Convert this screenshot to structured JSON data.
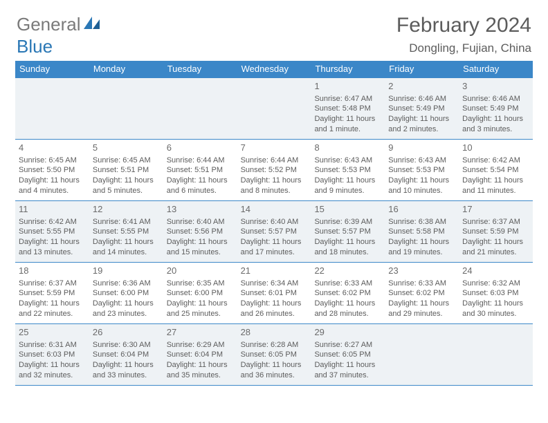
{
  "logo": {
    "part1": "General",
    "part2": "Blue"
  },
  "title": "February 2024",
  "location": "Dongling, Fujian, China",
  "colors": {
    "header_bg": "#3b87c8",
    "shade_bg": "#eef2f5",
    "text": "#5c5c5c",
    "logo_gray": "#7a7a7a",
    "logo_blue": "#2a77b5"
  },
  "day_names": [
    "Sunday",
    "Monday",
    "Tuesday",
    "Wednesday",
    "Thursday",
    "Friday",
    "Saturday"
  ],
  "weeks": [
    [
      {
        "num": "",
        "sunrise": "",
        "sunset": "",
        "daylight": ""
      },
      {
        "num": "",
        "sunrise": "",
        "sunset": "",
        "daylight": ""
      },
      {
        "num": "",
        "sunrise": "",
        "sunset": "",
        "daylight": ""
      },
      {
        "num": "",
        "sunrise": "",
        "sunset": "",
        "daylight": ""
      },
      {
        "num": "1",
        "sunrise": "Sunrise: 6:47 AM",
        "sunset": "Sunset: 5:48 PM",
        "daylight": "Daylight: 11 hours and 1 minute."
      },
      {
        "num": "2",
        "sunrise": "Sunrise: 6:46 AM",
        "sunset": "Sunset: 5:49 PM",
        "daylight": "Daylight: 11 hours and 2 minutes."
      },
      {
        "num": "3",
        "sunrise": "Sunrise: 6:46 AM",
        "sunset": "Sunset: 5:49 PM",
        "daylight": "Daylight: 11 hours and 3 minutes."
      }
    ],
    [
      {
        "num": "4",
        "sunrise": "Sunrise: 6:45 AM",
        "sunset": "Sunset: 5:50 PM",
        "daylight": "Daylight: 11 hours and 4 minutes."
      },
      {
        "num": "5",
        "sunrise": "Sunrise: 6:45 AM",
        "sunset": "Sunset: 5:51 PM",
        "daylight": "Daylight: 11 hours and 5 minutes."
      },
      {
        "num": "6",
        "sunrise": "Sunrise: 6:44 AM",
        "sunset": "Sunset: 5:51 PM",
        "daylight": "Daylight: 11 hours and 6 minutes."
      },
      {
        "num": "7",
        "sunrise": "Sunrise: 6:44 AM",
        "sunset": "Sunset: 5:52 PM",
        "daylight": "Daylight: 11 hours and 8 minutes."
      },
      {
        "num": "8",
        "sunrise": "Sunrise: 6:43 AM",
        "sunset": "Sunset: 5:53 PM",
        "daylight": "Daylight: 11 hours and 9 minutes."
      },
      {
        "num": "9",
        "sunrise": "Sunrise: 6:43 AM",
        "sunset": "Sunset: 5:53 PM",
        "daylight": "Daylight: 11 hours and 10 minutes."
      },
      {
        "num": "10",
        "sunrise": "Sunrise: 6:42 AM",
        "sunset": "Sunset: 5:54 PM",
        "daylight": "Daylight: 11 hours and 11 minutes."
      }
    ],
    [
      {
        "num": "11",
        "sunrise": "Sunrise: 6:42 AM",
        "sunset": "Sunset: 5:55 PM",
        "daylight": "Daylight: 11 hours and 13 minutes."
      },
      {
        "num": "12",
        "sunrise": "Sunrise: 6:41 AM",
        "sunset": "Sunset: 5:55 PM",
        "daylight": "Daylight: 11 hours and 14 minutes."
      },
      {
        "num": "13",
        "sunrise": "Sunrise: 6:40 AM",
        "sunset": "Sunset: 5:56 PM",
        "daylight": "Daylight: 11 hours and 15 minutes."
      },
      {
        "num": "14",
        "sunrise": "Sunrise: 6:40 AM",
        "sunset": "Sunset: 5:57 PM",
        "daylight": "Daylight: 11 hours and 17 minutes."
      },
      {
        "num": "15",
        "sunrise": "Sunrise: 6:39 AM",
        "sunset": "Sunset: 5:57 PM",
        "daylight": "Daylight: 11 hours and 18 minutes."
      },
      {
        "num": "16",
        "sunrise": "Sunrise: 6:38 AM",
        "sunset": "Sunset: 5:58 PM",
        "daylight": "Daylight: 11 hours and 19 minutes."
      },
      {
        "num": "17",
        "sunrise": "Sunrise: 6:37 AM",
        "sunset": "Sunset: 5:59 PM",
        "daylight": "Daylight: 11 hours and 21 minutes."
      }
    ],
    [
      {
        "num": "18",
        "sunrise": "Sunrise: 6:37 AM",
        "sunset": "Sunset: 5:59 PM",
        "daylight": "Daylight: 11 hours and 22 minutes."
      },
      {
        "num": "19",
        "sunrise": "Sunrise: 6:36 AM",
        "sunset": "Sunset: 6:00 PM",
        "daylight": "Daylight: 11 hours and 23 minutes."
      },
      {
        "num": "20",
        "sunrise": "Sunrise: 6:35 AM",
        "sunset": "Sunset: 6:00 PM",
        "daylight": "Daylight: 11 hours and 25 minutes."
      },
      {
        "num": "21",
        "sunrise": "Sunrise: 6:34 AM",
        "sunset": "Sunset: 6:01 PM",
        "daylight": "Daylight: 11 hours and 26 minutes."
      },
      {
        "num": "22",
        "sunrise": "Sunrise: 6:33 AM",
        "sunset": "Sunset: 6:02 PM",
        "daylight": "Daylight: 11 hours and 28 minutes."
      },
      {
        "num": "23",
        "sunrise": "Sunrise: 6:33 AM",
        "sunset": "Sunset: 6:02 PM",
        "daylight": "Daylight: 11 hours and 29 minutes."
      },
      {
        "num": "24",
        "sunrise": "Sunrise: 6:32 AM",
        "sunset": "Sunset: 6:03 PM",
        "daylight": "Daylight: 11 hours and 30 minutes."
      }
    ],
    [
      {
        "num": "25",
        "sunrise": "Sunrise: 6:31 AM",
        "sunset": "Sunset: 6:03 PM",
        "daylight": "Daylight: 11 hours and 32 minutes."
      },
      {
        "num": "26",
        "sunrise": "Sunrise: 6:30 AM",
        "sunset": "Sunset: 6:04 PM",
        "daylight": "Daylight: 11 hours and 33 minutes."
      },
      {
        "num": "27",
        "sunrise": "Sunrise: 6:29 AM",
        "sunset": "Sunset: 6:04 PM",
        "daylight": "Daylight: 11 hours and 35 minutes."
      },
      {
        "num": "28",
        "sunrise": "Sunrise: 6:28 AM",
        "sunset": "Sunset: 6:05 PM",
        "daylight": "Daylight: 11 hours and 36 minutes."
      },
      {
        "num": "29",
        "sunrise": "Sunrise: 6:27 AM",
        "sunset": "Sunset: 6:05 PM",
        "daylight": "Daylight: 11 hours and 37 minutes."
      },
      {
        "num": "",
        "sunrise": "",
        "sunset": "",
        "daylight": ""
      },
      {
        "num": "",
        "sunrise": "",
        "sunset": "",
        "daylight": ""
      }
    ]
  ]
}
